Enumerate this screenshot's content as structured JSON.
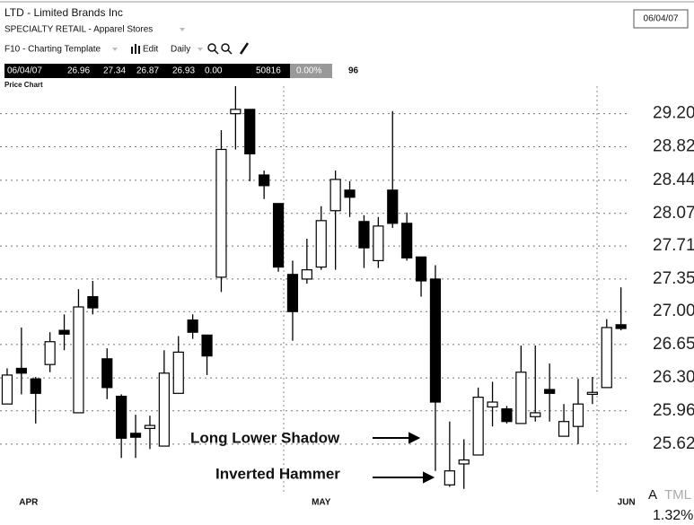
{
  "header": {
    "symbol": "LTD - Limited Brands Inc",
    "industry": "SPECIALTY RETAIL - Apparel Stores",
    "template": "F10 - Charting Template",
    "edit": "Edit",
    "period": "Daily",
    "date_box": "06/04/07",
    "quote": [
      "06/04/07",
      "26.96",
      "27.34",
      "26.87",
      "26.93",
      "0.00",
      "50816",
      "0.00%",
      "96"
    ],
    "panel_title": "Price Chart"
  },
  "footer": {
    "left": "A",
    "right": "TML",
    "change": "1.32%"
  },
  "chart_data": {
    "type": "candlestick",
    "annotations": [
      "Long Lower Shadow",
      "Inverted Hammer"
    ],
    "categories": [
      null,
      "APR",
      null,
      null,
      null,
      null,
      null,
      null,
      null,
      null,
      null,
      null,
      null,
      null,
      null,
      null,
      null,
      null,
      null,
      null,
      null,
      null,
      "MAY",
      null,
      null,
      null,
      null,
      null,
      null,
      null,
      null,
      null,
      null,
      null,
      null,
      null,
      null,
      null,
      null,
      null,
      null,
      null,
      null,
      "JUN"
    ],
    "open": [
      26.03,
      26.4,
      26.29,
      26.44,
      26.8,
      25.94,
      27.16,
      26.5,
      26.11,
      25.73,
      25.78,
      25.6,
      26.14,
      26.91,
      26.75,
      27.37,
      29.2,
      29.25,
      28.5,
      28.18,
      27.4,
      27.35,
      27.48,
      28.1,
      28.33,
      27.98,
      27.55,
      28.33,
      27.96,
      27.59,
      27.35,
      25.21,
      25.42,
      25.51,
      26.0,
      25.98,
      25.83,
      25.9,
      26.18,
      25.7,
      25.8,
      26.13,
      26.2,
      26.86
    ],
    "high": [
      26.4,
      26.83,
      26.31,
      26.78,
      26.97,
      27.24,
      27.33,
      26.61,
      26.13,
      25.92,
      25.91,
      26.59,
      26.74,
      26.97,
      26.75,
      29.01,
      29.52,
      29.25,
      28.55,
      28.18,
      27.55,
      27.79,
      28.15,
      28.55,
      28.43,
      28.05,
      28.03,
      29.23,
      28.08,
      27.59,
      27.5,
      25.85,
      25.67,
      26.2,
      26.26,
      26.01,
      26.64,
      26.64,
      26.45,
      26.03,
      26.29,
      26.31,
      26.92,
      27.26
    ],
    "low": [
      26.03,
      26.13,
      25.83,
      26.36,
      26.59,
      25.94,
      26.97,
      26.08,
      25.48,
      25.48,
      25.57,
      25.6,
      26.14,
      26.71,
      26.33,
      27.21,
      28.79,
      28.43,
      28.23,
      27.43,
      26.69,
      27.3,
      27.45,
      27.45,
      28.03,
      27.47,
      27.47,
      27.91,
      27.55,
      27.16,
      25.35,
      25.19,
      25.17,
      25.51,
      25.8,
      25.83,
      25.83,
      25.85,
      25.85,
      25.7,
      25.62,
      26.03,
      26.2,
      26.8
    ],
    "close": [
      26.33,
      26.35,
      26.14,
      26.68,
      26.76,
      27.05,
      27.04,
      26.2,
      25.68,
      25.69,
      25.81,
      26.35,
      26.57,
      26.78,
      26.53,
      28.79,
      29.25,
      28.74,
      28.38,
      27.48,
      27.0,
      27.45,
      27.99,
      28.45,
      28.25,
      27.69,
      27.93,
      27.96,
      27.58,
      27.33,
      26.05,
      25.35,
      25.46,
      26.1,
      26.05,
      25.85,
      26.36,
      25.94,
      26.14,
      25.85,
      26.03,
      26.15,
      26.83,
      26.82
    ],
    "up_color": "#ffffff",
    "down_color": "#000000",
    "log_scale": true,
    "ylim": [
      25.15,
      29.52
    ],
    "yticks": [
      {
        "value": 29.2,
        "label": "29.20"
      },
      28.82,
      28.44,
      28.07,
      27.71,
      27.35,
      {
        "value": 27,
        "label": "27.00"
      },
      26.65,
      {
        "value": 26.3,
        "label": "26.30"
      },
      25.96,
      25.62
    ],
    "grid": true
  }
}
